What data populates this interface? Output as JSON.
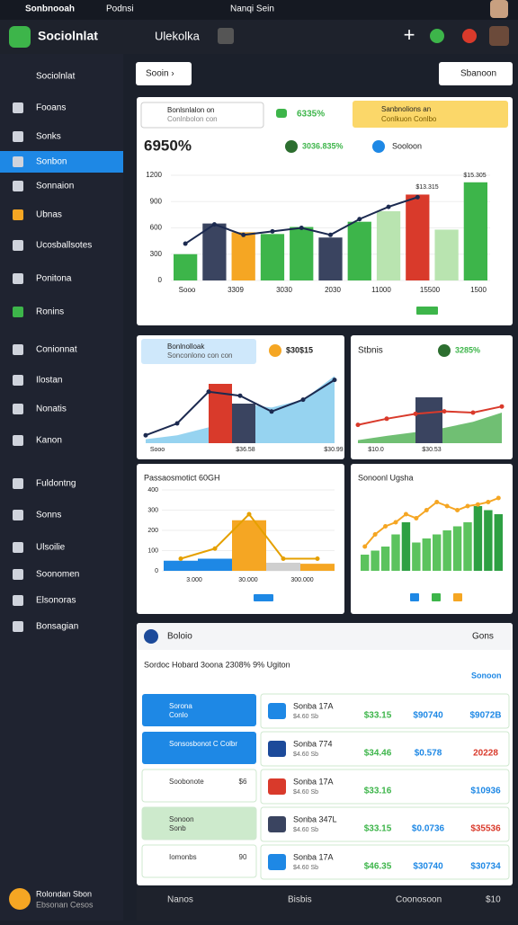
{
  "status_bar": {
    "left": "Sonbnooah",
    "tab": "Podnsi",
    "center": "Nanqi Sein"
  },
  "header": {
    "app_name": "Sociolnlat",
    "section": "Ulekolka"
  },
  "sidebar": {
    "items": [
      "Fooans",
      "Sonks",
      "Sonbon",
      "Sonnaion",
      "Ubnas",
      "Ucosballsotes",
      "Ponitona",
      "Ronins",
      "Conionnat",
      "Ilostan",
      "Nonatis",
      "Kanon",
      "Fuldontng",
      "Sonns",
      "Ulsoilie",
      "Soonomen",
      "Elsonoras",
      "Bonsagian"
    ],
    "active": 2,
    "user_name": "Rolondan Sbon",
    "user_sub": "Ebsonan Cesos"
  },
  "toolbar": {
    "left_button": "Sooin ›",
    "right_button": "Sbanoon"
  },
  "overview": {
    "input_label": "Bonlsnlalon on",
    "input_sub": "Conlnbolon con",
    "stat": "6335%",
    "highlight_title": "Sanbnolions an",
    "highlight_sub": "Conlkuon Conlbo",
    "big_value": "6950%",
    "chip1": "3036.835%",
    "chip2": "Sooloon",
    "top_label": "$15.305",
    "mid_label": "$13.315",
    "ylim": [
      0,
      1200
    ],
    "yticks": [
      0,
      300,
      600,
      900,
      1200
    ],
    "x_labels": [
      "Sooo",
      "3309",
      "3030",
      "2030",
      "11000",
      "15500",
      "1500"
    ],
    "bar_values": [
      300,
      650,
      550,
      530,
      610,
      490,
      670,
      790,
      980,
      580,
      1120
    ],
    "bar_colors": [
      "#3db54a",
      "#3a4460",
      "#f5a623",
      "#3db54a",
      "#3db54a",
      "#3a4460",
      "#3db54a",
      "#b9e4b0",
      "#d93a2b",
      "#b9e4b0",
      "#3db54a"
    ],
    "line_values": [
      420,
      640,
      520,
      560,
      600,
      520,
      700,
      840,
      950,
      null,
      null
    ]
  },
  "card_a": {
    "chip_title": "Bonlnolloak",
    "chip_sub": "Sonconlono con con",
    "stat": "$30$15",
    "x_labels": [
      "Sooo",
      "$36.58",
      "$30.99"
    ],
    "ylim": [
      0,
      100
    ],
    "area_values": [
      5,
      10,
      20,
      50,
      45,
      55,
      85
    ],
    "bar_values": [
      75,
      50
    ],
    "line_values": [
      10,
      25,
      65,
      60,
      40,
      55,
      80
    ]
  },
  "card_b": {
    "title": "Stbnis",
    "stat": "3285%",
    "x_labels": [
      "$10.0",
      "$30.53"
    ],
    "ylim": [
      0,
      100
    ],
    "area_values": [
      5,
      12,
      18,
      25,
      35,
      50
    ],
    "bar_values": [
      75
    ],
    "line_values": [
      30,
      40,
      48,
      52,
      50,
      60
    ]
  },
  "card_c": {
    "title": "Passaosmotict 60GH",
    "ylim": [
      0,
      400
    ],
    "yticks": [
      0,
      100,
      200,
      300,
      400
    ],
    "x_labels": [
      "3.000",
      "30.000",
      "300.000"
    ],
    "bar_values": [
      50,
      60,
      250,
      40,
      35
    ],
    "line_values": [
      60,
      110,
      280,
      60,
      60
    ]
  },
  "card_d": {
    "title": "Sonoonl Ugsha",
    "ylim": [
      0,
      100
    ],
    "bar_values": [
      20,
      25,
      30,
      45,
      60,
      35,
      40,
      45,
      50,
      55,
      60,
      80,
      75,
      70
    ],
    "line_values": [
      30,
      45,
      55,
      60,
      70,
      65,
      75,
      85,
      80,
      75,
      80,
      82,
      85,
      90
    ]
  },
  "table": {
    "title": "Boloio",
    "right": "Gons",
    "summary": "Sordoc Hobard 3oona 2308% 9% Ugiton",
    "link": "Sonoon",
    "list": [
      [
        "Sorona",
        "Conlo",
        ""
      ],
      [
        "Sonsosbonot C Colbr",
        "",
        ""
      ],
      [
        "Soobonote",
        "",
        "$6"
      ],
      [
        "Sonoon",
        "Sonb",
        ""
      ],
      [
        "Iomonbs",
        "",
        "90"
      ]
    ],
    "rows": [
      [
        "Sonba 17A",
        "$4.60 Sb",
        "$33.15",
        "$90740",
        "$9072B"
      ],
      [
        "Sonba 774",
        "$4.60 Sb",
        "$34.46",
        "$0.578",
        "20228"
      ],
      [
        "Sonba 17A",
        "$4.60 Sb",
        "$33.16",
        "",
        "$10936"
      ],
      [
        "Sonba 347L",
        "$4.60 Sb",
        "$33.15",
        "$0.0736",
        "$35536"
      ],
      [
        "Sonba 17A",
        "$4.60 Sb",
        "$46.35",
        "$30740",
        "$30734"
      ]
    ]
  },
  "bottom_bar": {
    "items": [
      "Nanos",
      "Bisbis",
      "Coonosoon",
      "$10"
    ]
  }
}
